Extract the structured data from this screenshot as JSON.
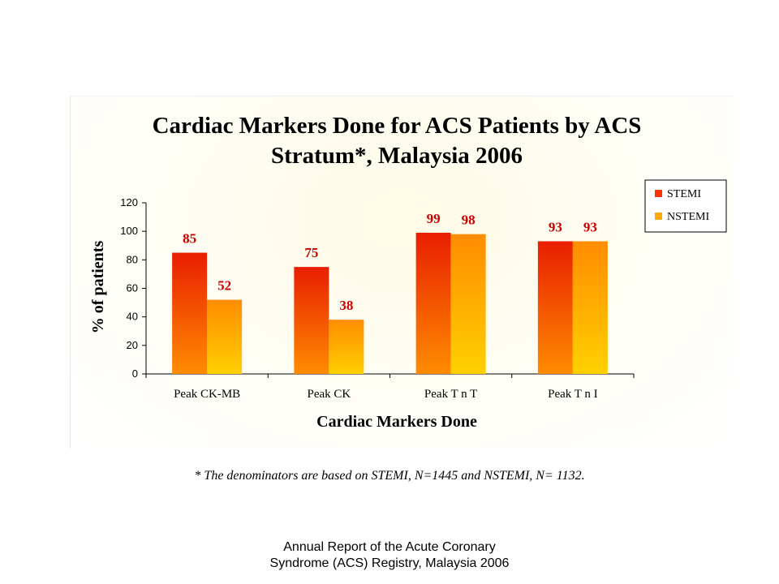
{
  "chart_data": {
    "type": "bar",
    "title_lines": [
      "Cardiac Markers Done for ACS Patients by ACS",
      "Stratum*, Malaysia 2006"
    ],
    "xlabel": "Cardiac Markers Done",
    "ylabel": "% of patients",
    "categories": [
      "Peak CK-MB",
      "Peak CK",
      "Peak T n T",
      "Peak T n I"
    ],
    "series": [
      {
        "name": "STEMI",
        "values": [
          85,
          75,
          99,
          93
        ],
        "color_top": "#e81e00",
        "color_bottom": "#ff8c00"
      },
      {
        "name": "NSTEMI",
        "values": [
          52,
          38,
          98,
          93
        ],
        "color_top": "#ff8c00",
        "color_bottom": "#ffd000"
      }
    ],
    "ylim": [
      0,
      120
    ],
    "yticks": [
      0,
      20,
      40,
      60,
      80,
      100,
      120
    ],
    "data_label_color": "#cc0000",
    "legend_position": "right",
    "grid": false
  },
  "footnote": "* The denominators are based on STEMI, N=1445 and NSTEMI, N= 1132.",
  "footer": {
    "line1": "Annual Report of the Acute Coronary",
    "line2": "Syndrome (ACS) Registry, Malaysia 2006"
  }
}
